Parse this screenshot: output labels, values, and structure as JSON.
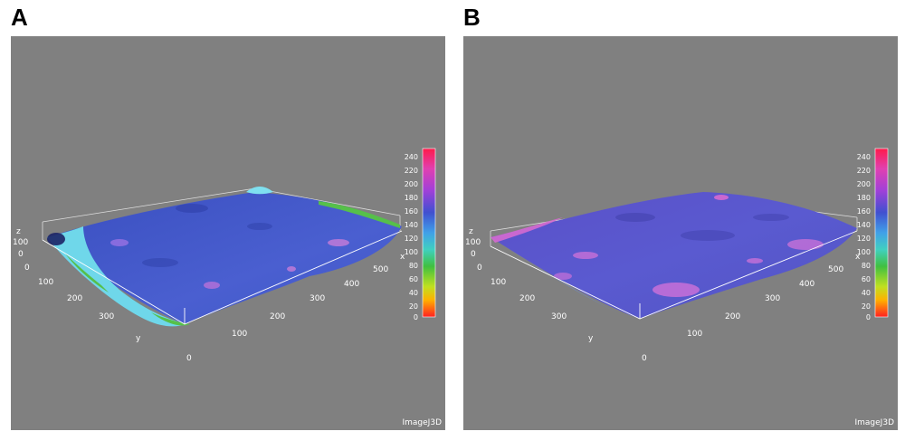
{
  "panels": [
    {
      "letter": "A",
      "axes": {
        "z_label": "z",
        "z_ticks": [
          "100",
          "0"
        ],
        "y_label": "y",
        "y_ticks": [
          "0",
          "100",
          "200",
          "300"
        ],
        "x_label": "x",
        "x_ticks": [
          "0",
          "100",
          "200",
          "300",
          "400",
          "500"
        ]
      },
      "colorbar_ticks": [
        "240",
        "220",
        "200",
        "180",
        "160",
        "140",
        "120",
        "100",
        "80",
        "60",
        "40",
        "20",
        "0"
      ],
      "watermark": "ImageJ3D",
      "surface_colors": {
        "base": "#4559c8",
        "edge": "#6fd7ea",
        "rim": "#56c04a",
        "peak": "#c07ad8"
      }
    },
    {
      "letter": "B",
      "axes": {
        "z_label": "z",
        "z_ticks": [
          "100",
          "0"
        ],
        "y_label": "y",
        "y_ticks": [
          "0",
          "100",
          "200",
          "300"
        ],
        "x_label": "x",
        "x_ticks": [
          "0",
          "100",
          "200",
          "300",
          "400",
          "500"
        ]
      },
      "colorbar_ticks": [
        "240",
        "220",
        "200",
        "180",
        "160",
        "140",
        "120",
        "100",
        "80",
        "60",
        "40",
        "20",
        "0"
      ],
      "watermark": "ImageJ3D",
      "surface_colors": {
        "base": "#5a56c8",
        "edge": "#7a6ad6",
        "rim": "#5a9be0",
        "peak": "#d56ad0"
      }
    }
  ]
}
